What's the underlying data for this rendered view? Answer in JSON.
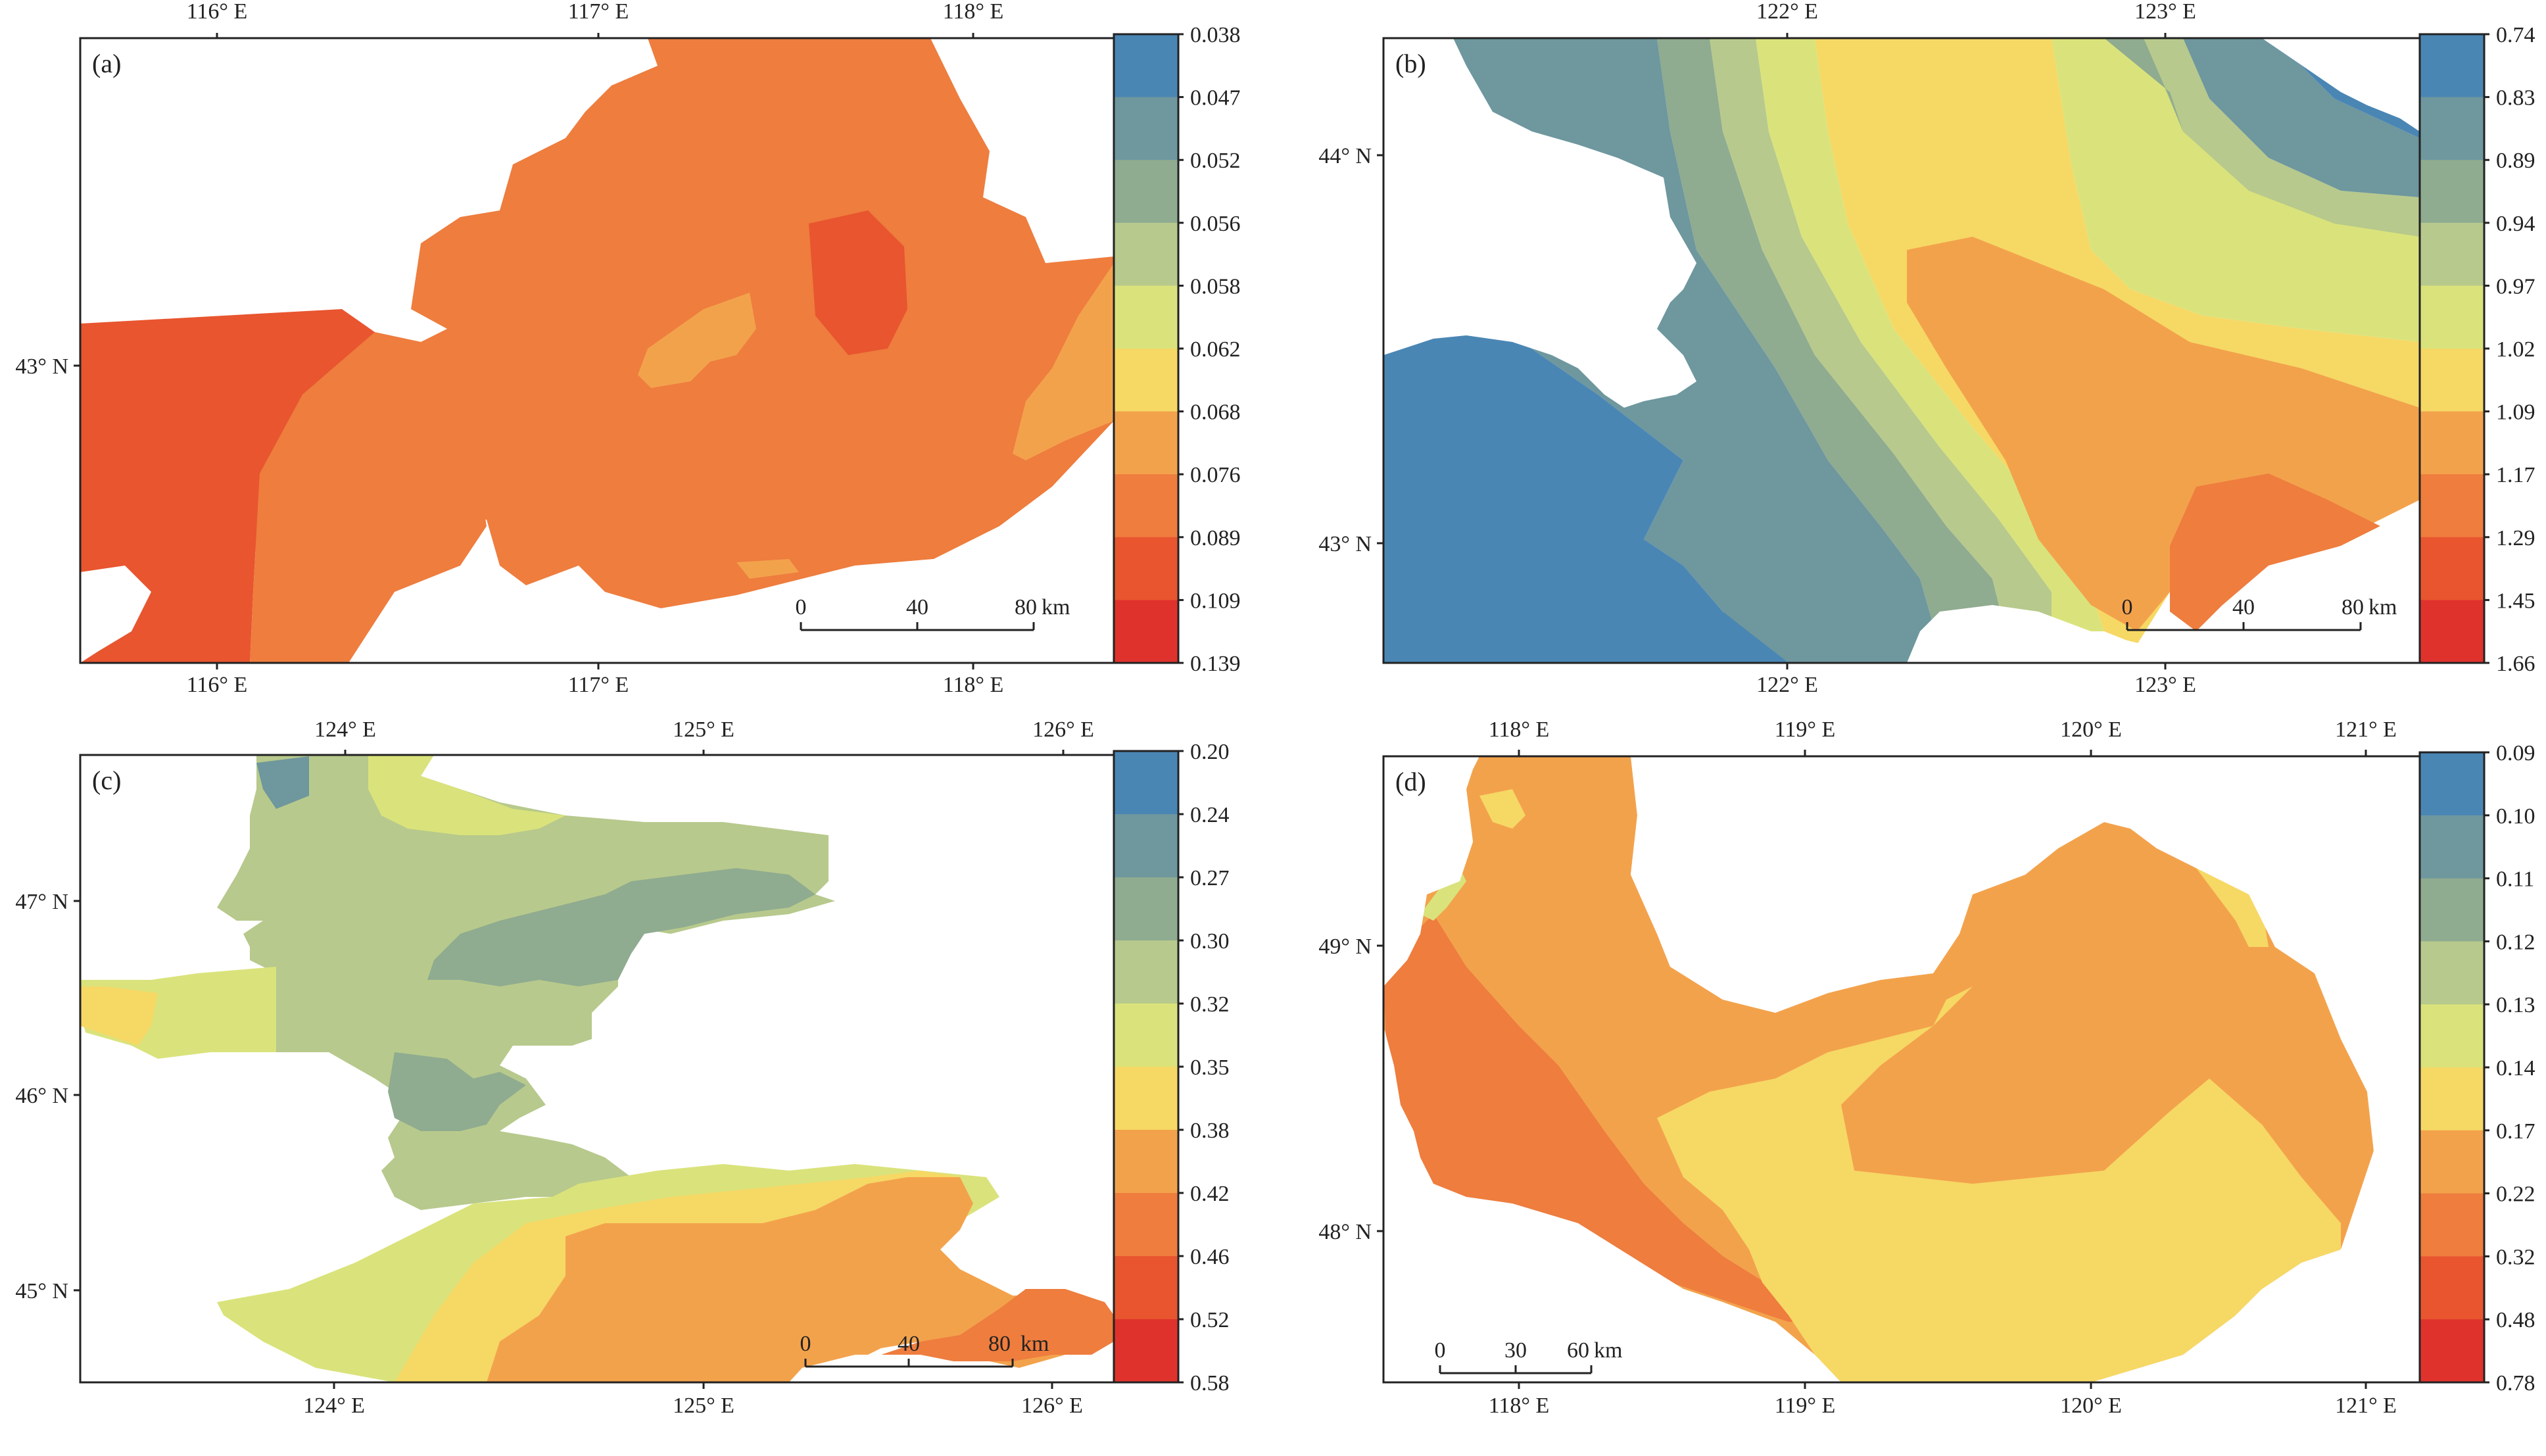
{
  "palette": [
    "#4a86b4",
    "#6e979e",
    "#8fab90",
    "#b7c98c",
    "#dae37b",
    "#f6d865",
    "#f3a24c",
    "#ee7d3e",
    "#e8552f",
    "#e0322c"
  ],
  "panels": [
    {
      "id": "a",
      "label": "(a)",
      "top_ticks": [
        "116° E",
        "117° E",
        "118° E"
      ],
      "bottom_ticks": [
        "116° E",
        "117° E",
        "118° E"
      ],
      "left_ticks": [
        "43° N"
      ],
      "legend_values": [
        "0.038",
        "0.047",
        "0.052",
        "0.056",
        "0.058",
        "0.062",
        "0.068",
        "0.076",
        "0.089",
        "0.109",
        "0.139"
      ],
      "scalebar": {
        "labels": [
          "0",
          "40",
          "80"
        ],
        "unit": "km"
      }
    },
    {
      "id": "b",
      "label": "(b)",
      "top_ticks": [
        "122° E",
        "123° E"
      ],
      "bottom_ticks": [
        "122° E",
        "123° E"
      ],
      "left_ticks": [
        "44° N",
        "43° N"
      ],
      "legend_values": [
        "0.74",
        "0.83",
        "0.89",
        "0.94",
        "0.97",
        "1.02",
        "1.09",
        "1.17",
        "1.29",
        "1.45",
        "1.66"
      ],
      "scalebar": {
        "labels": [
          "0",
          "40",
          "80"
        ],
        "unit": "km"
      }
    },
    {
      "id": "c",
      "label": "(c)",
      "top_ticks": [
        "124° E",
        "125° E",
        "126° E"
      ],
      "bottom_ticks": [
        "124° E",
        "125° E",
        "126° E"
      ],
      "left_ticks": [
        "47° N",
        "46° N",
        "45° N"
      ],
      "legend_values": [
        "0.20",
        "0.24",
        "0.27",
        "0.30",
        "0.32",
        "0.35",
        "0.38",
        "0.42",
        "0.46",
        "0.52",
        "0.58"
      ],
      "scalebar": {
        "labels": [
          "0",
          "40",
          "80"
        ],
        "unit": "km"
      }
    },
    {
      "id": "d",
      "label": "(d)",
      "top_ticks": [
        "118° E",
        "119° E",
        "120° E",
        "121° E"
      ],
      "bottom_ticks": [
        "118° E",
        "119° E",
        "120° E",
        "121° E"
      ],
      "left_ticks": [
        "49° N",
        "48° N"
      ],
      "legend_values": [
        "0.09",
        "0.10",
        "0.11",
        "0.12",
        "0.13",
        "0.14",
        "0.17",
        "0.22",
        "0.32",
        "0.48",
        "0.78"
      ],
      "scalebar": {
        "labels": [
          "0",
          "30",
          "60"
        ],
        "unit": "km"
      }
    }
  ]
}
